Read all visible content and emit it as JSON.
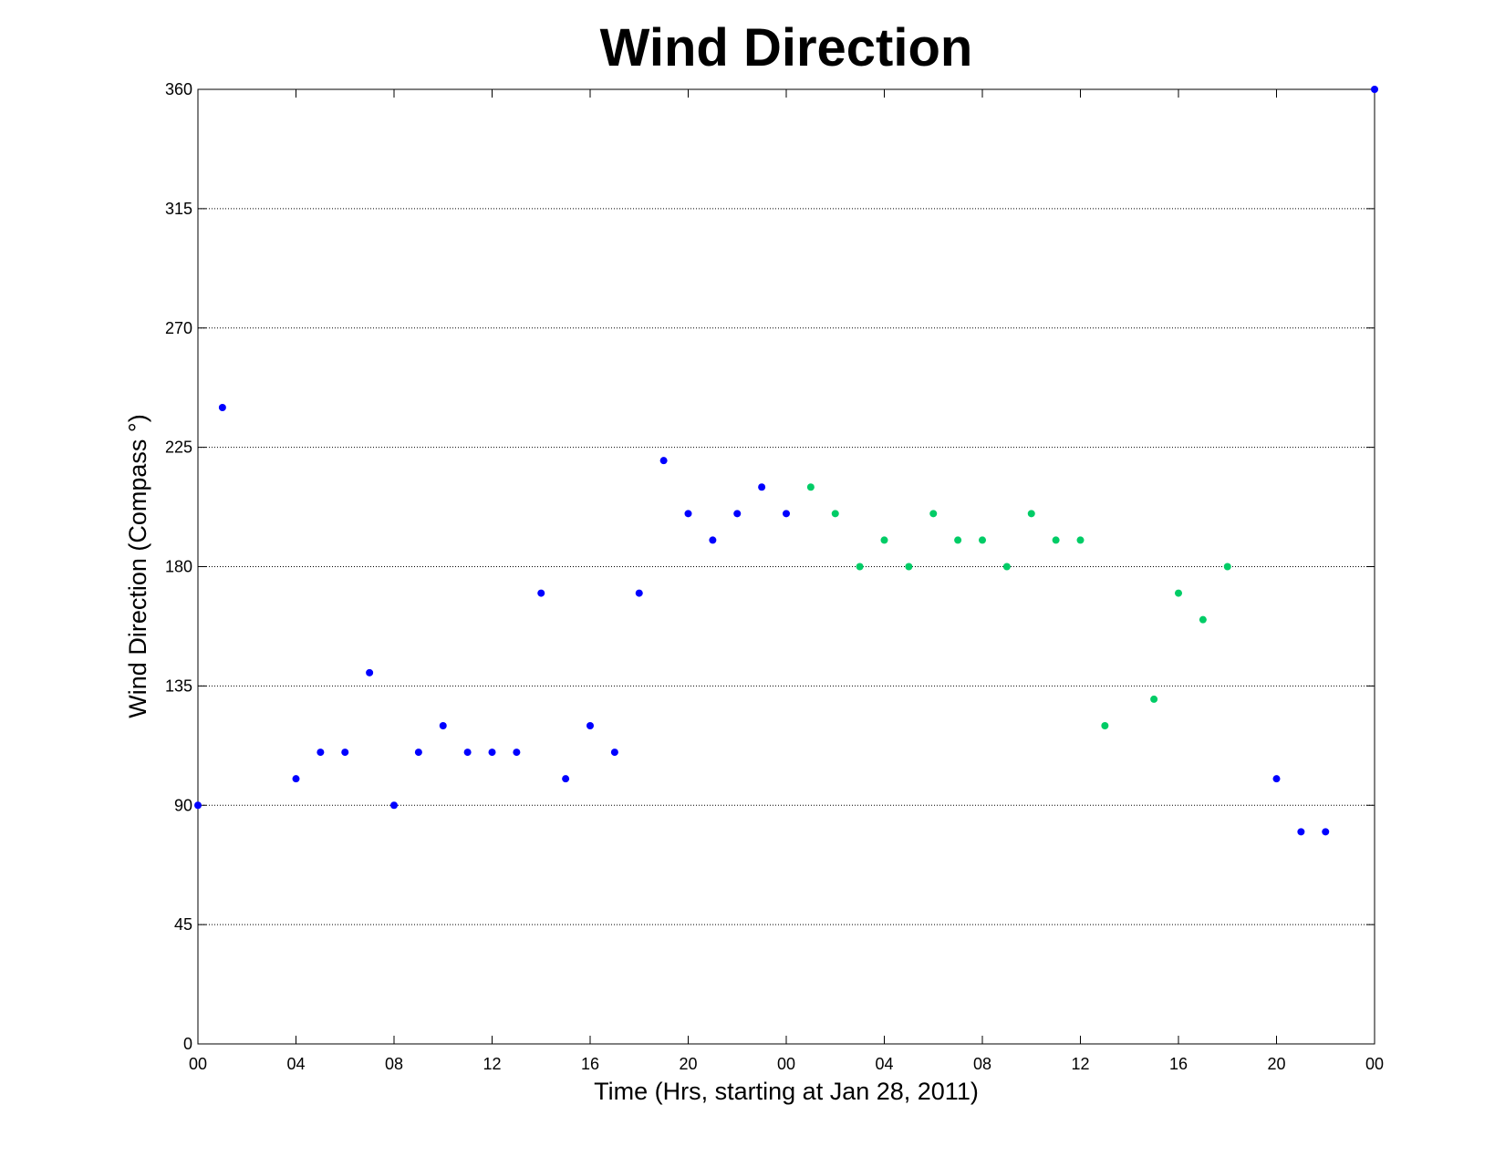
{
  "chart_data": {
    "type": "scatter",
    "title": "Wind Direction",
    "xlabel": "Time (Hrs, starting at Jan 28, 2011)",
    "ylabel": "Wind Direction (Compass  °)",
    "xlim": [
      0,
      48
    ],
    "ylim": [
      0,
      360
    ],
    "x_ticks": [
      0,
      4,
      8,
      12,
      16,
      20,
      24,
      28,
      32,
      36,
      40,
      44,
      48
    ],
    "x_tick_labels": [
      "00",
      "04",
      "08",
      "12",
      "16",
      "20",
      "00",
      "04",
      "08",
      "12",
      "16",
      "20",
      "00"
    ],
    "y_ticks": [
      0,
      45,
      90,
      135,
      180,
      225,
      270,
      315,
      360
    ],
    "y_tick_labels": [
      "0",
      "45",
      "90",
      "135",
      "180",
      "225",
      "270",
      "315",
      "360"
    ],
    "grid": "y dotted",
    "colors": {
      "blue": "#0000ff",
      "green": "#00cc66"
    },
    "series": [
      {
        "color": "#0000ff",
        "points": [
          [
            0,
            90
          ],
          [
            1,
            240
          ],
          [
            4,
            100
          ],
          [
            5,
            110
          ],
          [
            6,
            110
          ],
          [
            7,
            140
          ],
          [
            8,
            90
          ],
          [
            9,
            110
          ],
          [
            10,
            120
          ],
          [
            11,
            110
          ],
          [
            12,
            110
          ],
          [
            13,
            110
          ],
          [
            14,
            170
          ],
          [
            15,
            100
          ],
          [
            16,
            120
          ],
          [
            17,
            110
          ],
          [
            18,
            170
          ],
          [
            19,
            220
          ],
          [
            20,
            200
          ],
          [
            21,
            190
          ],
          [
            22,
            200
          ],
          [
            23,
            210
          ],
          [
            24,
            200
          ],
          [
            44,
            100
          ],
          [
            45,
            80
          ],
          [
            46,
            80
          ],
          [
            48,
            360
          ]
        ]
      },
      {
        "color": "#00cc66",
        "points": [
          [
            25,
            210
          ],
          [
            26,
            200
          ],
          [
            27,
            180
          ],
          [
            28,
            190
          ],
          [
            29,
            180
          ],
          [
            30,
            200
          ],
          [
            31,
            190
          ],
          [
            32,
            190
          ],
          [
            33,
            180
          ],
          [
            34,
            200
          ],
          [
            35,
            190
          ],
          [
            36,
            190
          ],
          [
            37,
            120
          ],
          [
            39,
            130
          ],
          [
            40,
            170
          ],
          [
            41,
            160
          ],
          [
            42,
            180
          ]
        ]
      }
    ]
  }
}
